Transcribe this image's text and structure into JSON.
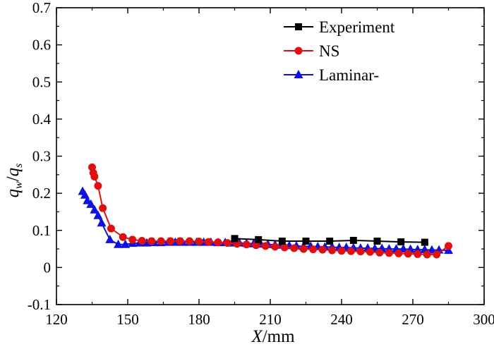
{
  "chart_data": {
    "type": "line",
    "title": "",
    "xlabel": "X/mm",
    "xlabel_var": "X",
    "xlabel_unit": "/mm",
    "ylabel": "qw/qs",
    "xlim": [
      120,
      300
    ],
    "ylim": [
      -0.1,
      0.7
    ],
    "xticks": [
      "120",
      "150",
      "180",
      "210",
      "240",
      "270",
      "300"
    ],
    "yticks": [
      "-0.1",
      "0",
      "0.1",
      "0.2",
      "0.3",
      "0.4",
      "0.5",
      "0.6",
      "0.7"
    ],
    "grid": false,
    "legend_position": "top-right",
    "series": [
      {
        "name": "Experiment",
        "color": "#000000",
        "marker": "square",
        "x": [
          195,
          205,
          215,
          225,
          235,
          245,
          255,
          265,
          275
        ],
        "y": [
          0.078,
          0.075,
          0.071,
          0.071,
          0.071,
          0.073,
          0.071,
          0.069,
          0.068
        ]
      },
      {
        "name": "NS",
        "color": "#e01010",
        "marker": "circle",
        "x": [
          135,
          135.5,
          136,
          137.5,
          139.5,
          143,
          148,
          152,
          156,
          160,
          164,
          168,
          172,
          176,
          180,
          184,
          188,
          192,
          196,
          200,
          204,
          208,
          212,
          216,
          220,
          224,
          228,
          232,
          236,
          240,
          244,
          248,
          252,
          256,
          260,
          264,
          268,
          272,
          276,
          280,
          285
        ],
        "y": [
          0.27,
          0.255,
          0.245,
          0.22,
          0.16,
          0.105,
          0.082,
          0.075,
          0.072,
          0.071,
          0.071,
          0.071,
          0.071,
          0.071,
          0.07,
          0.069,
          0.068,
          0.066,
          0.064,
          0.062,
          0.06,
          0.058,
          0.056,
          0.054,
          0.052,
          0.05,
          0.049,
          0.048,
          0.046,
          0.045,
          0.044,
          0.043,
          0.042,
          0.04,
          0.039,
          0.038,
          0.037,
          0.036,
          0.035,
          0.035,
          0.058
        ]
      },
      {
        "name": "Laminar-",
        "color": "#1010e0",
        "marker": "triangle",
        "x": [
          131,
          132,
          133,
          134.5,
          136,
          137.5,
          139,
          142.5,
          146,
          149,
          152,
          155,
          158,
          161,
          164,
          167,
          170,
          173,
          176,
          179,
          182,
          185,
          188,
          191,
          194,
          197,
          200,
          203,
          206,
          209,
          212,
          215,
          218,
          221,
          224,
          227,
          230,
          233,
          236,
          239,
          242,
          245,
          248,
          251,
          254,
          257,
          260,
          263,
          266,
          269,
          272,
          275,
          278,
          281,
          285
        ],
        "y": [
          0.205,
          0.195,
          0.18,
          0.17,
          0.155,
          0.14,
          0.12,
          0.075,
          0.062,
          0.062,
          0.065,
          0.066,
          0.066,
          0.067,
          0.067,
          0.068,
          0.068,
          0.068,
          0.068,
          0.068,
          0.068,
          0.068,
          0.067,
          0.067,
          0.066,
          0.066,
          0.065,
          0.064,
          0.063,
          0.062,
          0.061,
          0.06,
          0.059,
          0.058,
          0.057,
          0.057,
          0.056,
          0.055,
          0.055,
          0.054,
          0.054,
          0.053,
          0.052,
          0.052,
          0.051,
          0.051,
          0.05,
          0.05,
          0.05,
          0.049,
          0.048,
          0.048,
          0.047,
          0.047,
          0.046
        ]
      }
    ]
  }
}
